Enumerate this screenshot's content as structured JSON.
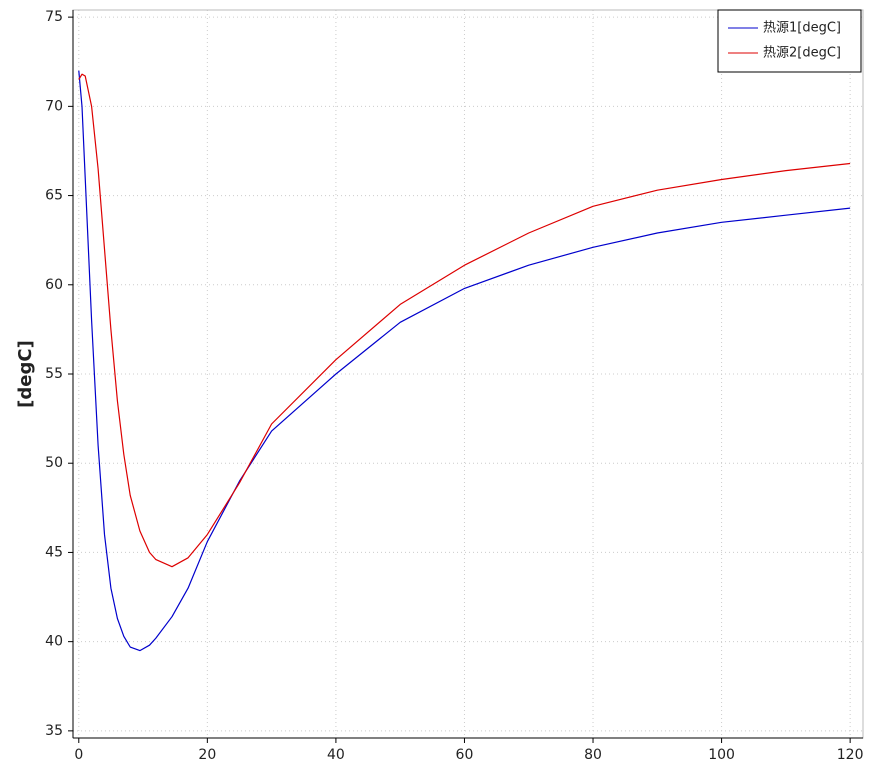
{
  "chart_data": {
    "type": "line",
    "y_label": "[degC]",
    "x": [
      0,
      0.5,
      1,
      2,
      3,
      4,
      5,
      6,
      7,
      8,
      9.5,
      11,
      12,
      14.5,
      17,
      20,
      25,
      30,
      40,
      50,
      60,
      70,
      80,
      90,
      100,
      110,
      120
    ],
    "series": [
      {
        "name": "热源1[degC]",
        "color": "#0000cc",
        "values": [
          72,
          70,
          66,
          58,
          51,
          46,
          43,
          41.3,
          40.3,
          39.7,
          39.5,
          39.8,
          40.2,
          41.4,
          43,
          45.6,
          49,
          51.8,
          55,
          57.9,
          59.8,
          61.1,
          62.1,
          62.9,
          63.5,
          63.9,
          64.3
        ]
      },
      {
        "name": "热源2[degC]",
        "color": "#dd0000",
        "values": [
          71.5,
          71.8,
          71.7,
          70,
          66.5,
          62,
          57.5,
          53.5,
          50.5,
          48.2,
          46.2,
          45,
          44.6,
          44.2,
          44.7,
          46,
          48.9,
          52.2,
          55.8,
          58.9,
          61.1,
          62.9,
          64.4,
          65.3,
          65.9,
          66.4,
          66.8
        ]
      }
    ],
    "xlim": [
      -0.9,
      122
    ],
    "ylim": [
      34.6,
      75.4
    ],
    "xticks": [
      0,
      20,
      40,
      60,
      80,
      100,
      120
    ],
    "yticks": [
      35,
      40,
      45,
      50,
      55,
      60,
      65,
      70,
      75
    ],
    "grid": true,
    "legend": "top-right"
  }
}
